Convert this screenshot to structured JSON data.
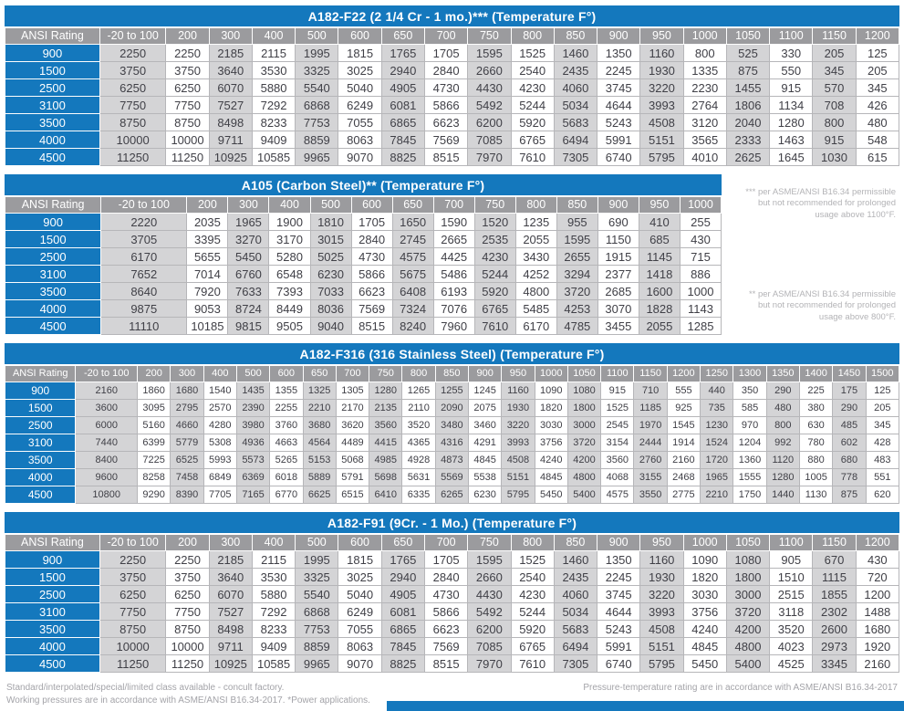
{
  "colors": {
    "accent_blue": "#1478bd",
    "header_gray": "#9b9b9e",
    "cell_shade": "#d4d4d6"
  },
  "tables": [
    {
      "title": "A182-F22 (2 1/4 Cr - 1 mo.)*** (Temperature F°)",
      "rating_header": "ANSI Rating",
      "columns": [
        "-20 to 100",
        "200",
        "300",
        "400",
        "500",
        "600",
        "650",
        "700",
        "750",
        "800",
        "850",
        "900",
        "950",
        "1000",
        "1050",
        "1100",
        "1150",
        "1200"
      ],
      "rows": [
        {
          "rating": "900",
          "values": [
            "2250",
            "2250",
            "2185",
            "2115",
            "1995",
            "1815",
            "1765",
            "1705",
            "1595",
            "1525",
            "1460",
            "1350",
            "1160",
            "800",
            "525",
            "330",
            "205",
            "125"
          ]
        },
        {
          "rating": "1500",
          "values": [
            "3750",
            "3750",
            "3640",
            "3530",
            "3325",
            "3025",
            "2940",
            "2840",
            "2660",
            "2540",
            "2435",
            "2245",
            "1930",
            "1335",
            "875",
            "550",
            "345",
            "205"
          ]
        },
        {
          "rating": "2500",
          "values": [
            "6250",
            "6250",
            "6070",
            "5880",
            "5540",
            "5040",
            "4905",
            "4730",
            "4430",
            "4230",
            "4060",
            "3745",
            "3220",
            "2230",
            "1455",
            "915",
            "570",
            "345"
          ]
        },
        {
          "rating": "3100",
          "values": [
            "7750",
            "7750",
            "7527",
            "7292",
            "6868",
            "6249",
            "6081",
            "5866",
            "5492",
            "5244",
            "5034",
            "4644",
            "3993",
            "2764",
            "1806",
            "1134",
            "708",
            "426"
          ]
        },
        {
          "rating": "3500",
          "values": [
            "8750",
            "8750",
            "8498",
            "8233",
            "7753",
            "7055",
            "6865",
            "6623",
            "6200",
            "5920",
            "5683",
            "5243",
            "4508",
            "3120",
            "2040",
            "1280",
            "800",
            "480"
          ]
        },
        {
          "rating": "4000",
          "values": [
            "10000",
            "10000",
            "9711",
            "9409",
            "8859",
            "8063",
            "7845",
            "7569",
            "7085",
            "6765",
            "6494",
            "5991",
            "5151",
            "3565",
            "2333",
            "1463",
            "915",
            "548"
          ]
        },
        {
          "rating": "4500",
          "values": [
            "11250",
            "11250",
            "10925",
            "10585",
            "9965",
            "9070",
            "8825",
            "8515",
            "7970",
            "7610",
            "7305",
            "6740",
            "5795",
            "4010",
            "2625",
            "1645",
            "1030",
            "615"
          ]
        }
      ]
    },
    {
      "title": "A105 (Carbon Steel)** (Temperature F°)",
      "rating_header": "ANSI Rating",
      "columns": [
        "-20 to 100",
        "200",
        "300",
        "400",
        "500",
        "600",
        "650",
        "700",
        "750",
        "800",
        "850",
        "900",
        "950",
        "1000"
      ],
      "rows": [
        {
          "rating": "900",
          "values": [
            "2220",
            "2035",
            "1965",
            "1900",
            "1810",
            "1705",
            "1650",
            "1590",
            "1520",
            "1235",
            "955",
            "690",
            "410",
            "255"
          ]
        },
        {
          "rating": "1500",
          "values": [
            "3705",
            "3395",
            "3270",
            "3170",
            "3015",
            "2840",
            "2745",
            "2665",
            "2535",
            "2055",
            "1595",
            "1150",
            "685",
            "430"
          ]
        },
        {
          "rating": "2500",
          "values": [
            "6170",
            "5655",
            "5450",
            "5280",
            "5025",
            "4730",
            "4575",
            "4425",
            "4230",
            "3430",
            "2655",
            "1915",
            "1145",
            "715"
          ]
        },
        {
          "rating": "3100",
          "values": [
            "7652",
            "7014",
            "6760",
            "6548",
            "6230",
            "5866",
            "5675",
            "5486",
            "5244",
            "4252",
            "3294",
            "2377",
            "1418",
            "886"
          ]
        },
        {
          "rating": "3500",
          "values": [
            "8640",
            "7920",
            "7633",
            "7393",
            "7033",
            "6623",
            "6408",
            "6193",
            "5920",
            "4800",
            "3720",
            "2685",
            "1600",
            "1000"
          ]
        },
        {
          "rating": "4000",
          "values": [
            "9875",
            "9053",
            "8724",
            "8449",
            "8036",
            "7569",
            "7324",
            "7076",
            "6765",
            "5485",
            "4253",
            "3070",
            "1828",
            "1143"
          ]
        },
        {
          "rating": "4500",
          "values": [
            "11110",
            "10185",
            "9815",
            "9505",
            "9040",
            "8515",
            "8240",
            "7960",
            "7610",
            "6170",
            "4785",
            "3455",
            "2055",
            "1285"
          ]
        }
      ]
    },
    {
      "title": "A182-F316 (316 Stainless Steel)  (Temperature F°)",
      "rating_header": "ANSI Rating",
      "columns": [
        "-20 to 100",
        "200",
        "300",
        "400",
        "500",
        "600",
        "650",
        "700",
        "750",
        "800",
        "850",
        "900",
        "950",
        "1000",
        "1050",
        "1100",
        "1150",
        "1200",
        "1250",
        "1300",
        "1350",
        "1400",
        "1450",
        "1500"
      ],
      "rows": [
        {
          "rating": "900",
          "values": [
            "2160",
            "1860",
            "1680",
            "1540",
            "1435",
            "1355",
            "1325",
            "1305",
            "1280",
            "1265",
            "1255",
            "1245",
            "1160",
            "1090",
            "1080",
            "915",
            "710",
            "555",
            "440",
            "350",
            "290",
            "225",
            "175",
            "125"
          ]
        },
        {
          "rating": "1500",
          "values": [
            "3600",
            "3095",
            "2795",
            "2570",
            "2390",
            "2255",
            "2210",
            "2170",
            "2135",
            "2110",
            "2090",
            "2075",
            "1930",
            "1820",
            "1800",
            "1525",
            "1185",
            "925",
            "735",
            "585",
            "480",
            "380",
            "290",
            "205"
          ]
        },
        {
          "rating": "2500",
          "values": [
            "6000",
            "5160",
            "4660",
            "4280",
            "3980",
            "3760",
            "3680",
            "3620",
            "3560",
            "3520",
            "3480",
            "3460",
            "3220",
            "3030",
            "3000",
            "2545",
            "1970",
            "1545",
            "1230",
            "970",
            "800",
            "630",
            "485",
            "345"
          ]
        },
        {
          "rating": "3100",
          "values": [
            "7440",
            "6399",
            "5779",
            "5308",
            "4936",
            "4663",
            "4564",
            "4489",
            "4415",
            "4365",
            "4316",
            "4291",
            "3993",
            "3756",
            "3720",
            "3154",
            "2444",
            "1914",
            "1524",
            "1204",
            "992",
            "780",
            "602",
            "428"
          ]
        },
        {
          "rating": "3500",
          "values": [
            "8400",
            "7225",
            "6525",
            "5993",
            "5573",
            "5265",
            "5153",
            "5068",
            "4985",
            "4928",
            "4873",
            "4845",
            "4508",
            "4240",
            "4200",
            "3560",
            "2760",
            "2160",
            "1720",
            "1360",
            "1120",
            "880",
            "680",
            "483"
          ]
        },
        {
          "rating": "4000",
          "values": [
            "9600",
            "8258",
            "7458",
            "6849",
            "6369",
            "6018",
            "5889",
            "5791",
            "5698",
            "5631",
            "5569",
            "5538",
            "5151",
            "4845",
            "4800",
            "4068",
            "3155",
            "2468",
            "1965",
            "1555",
            "1280",
            "1005",
            "778",
            "551"
          ]
        },
        {
          "rating": "4500",
          "values": [
            "10800",
            "9290",
            "8390",
            "7705",
            "7165",
            "6770",
            "6625",
            "6515",
            "6410",
            "6335",
            "6265",
            "6230",
            "5795",
            "5450",
            "5400",
            "4575",
            "3550",
            "2775",
            "2210",
            "1750",
            "1440",
            "1130",
            "875",
            "620"
          ]
        }
      ]
    },
    {
      "title": "A182-F91 (9Cr. - 1 Mo.) (Temperature F°)",
      "rating_header": "ANSI Rating",
      "columns": [
        "-20 to 100",
        "200",
        "300",
        "400",
        "500",
        "600",
        "650",
        "700",
        "750",
        "800",
        "850",
        "900",
        "950",
        "1000",
        "1050",
        "1100",
        "1150",
        "1200"
      ],
      "rows": [
        {
          "rating": "900",
          "values": [
            "2250",
            "2250",
            "2185",
            "2115",
            "1995",
            "1815",
            "1765",
            "1705",
            "1595",
            "1525",
            "1460",
            "1350",
            "1160",
            "1090",
            "1080",
            "905",
            "670",
            "430"
          ]
        },
        {
          "rating": "1500",
          "values": [
            "3750",
            "3750",
            "3640",
            "3530",
            "3325",
            "3025",
            "2940",
            "2840",
            "2660",
            "2540",
            "2435",
            "2245",
            "1930",
            "1820",
            "1800",
            "1510",
            "1115",
            "720"
          ]
        },
        {
          "rating": "2500",
          "values": [
            "6250",
            "6250",
            "6070",
            "5880",
            "5540",
            "5040",
            "4905",
            "4730",
            "4430",
            "4230",
            "4060",
            "3745",
            "3220",
            "3030",
            "3000",
            "2515",
            "1855",
            "1200"
          ]
        },
        {
          "rating": "3100",
          "values": [
            "7750",
            "7750",
            "7527",
            "7292",
            "6868",
            "6249",
            "6081",
            "5866",
            "5492",
            "5244",
            "5034",
            "4644",
            "3993",
            "3756",
            "3720",
            "3118",
            "2302",
            "1488"
          ]
        },
        {
          "rating": "3500",
          "values": [
            "8750",
            "8750",
            "8498",
            "8233",
            "7753",
            "7055",
            "6865",
            "6623",
            "6200",
            "5920",
            "5683",
            "5243",
            "4508",
            "4240",
            "4200",
            "3520",
            "2600",
            "1680"
          ]
        },
        {
          "rating": "4000",
          "values": [
            "10000",
            "10000",
            "9711",
            "9409",
            "8859",
            "8063",
            "7845",
            "7569",
            "7085",
            "6765",
            "6494",
            "5991",
            "5151",
            "4845",
            "4800",
            "4023",
            "2973",
            "1920"
          ]
        },
        {
          "rating": "4500",
          "values": [
            "11250",
            "11250",
            "10925",
            "10585",
            "9965",
            "9070",
            "8825",
            "8515",
            "7970",
            "7610",
            "7305",
            "6740",
            "5795",
            "5450",
            "5400",
            "4525",
            "3345",
            "2160"
          ]
        }
      ]
    }
  ],
  "notes": {
    "note_triple_star": "*** per ASME/ANSI B16.34 permissible but not recommended for prolonged usage above 1100°F.",
    "note_double_star": "** per ASME/ANSI B16.34 permissible but not recommended for prolonged usage above 800°F."
  },
  "footer": {
    "left_line1": "Standard/interpolated/special/limited class available - concult factory.",
    "left_line2": "Working pressures are in accordance with ASME/ANSI B16.34-2017. *Power applications.",
    "right": "Pressure-temperature rating are in accordance with  ASME/ANSI B16.34-2017"
  }
}
